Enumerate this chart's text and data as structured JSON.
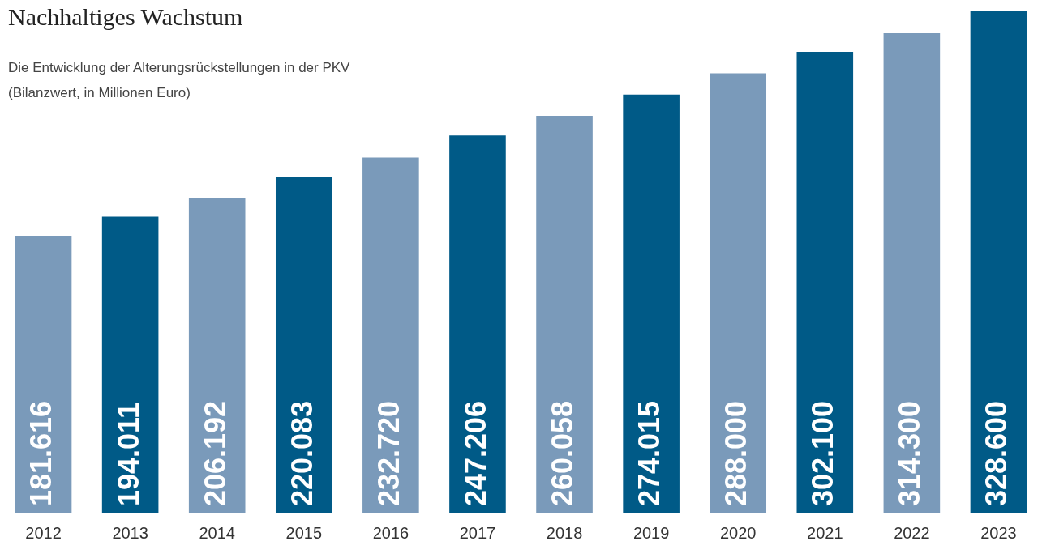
{
  "chart_data": {
    "type": "bar",
    "title": "Nachhaltiges Wachstum",
    "subtitle": "Die Entwicklung der Alterungsrückstellungen in der PKV (Bilanzwert, in Millionen Euro)",
    "categories": [
      "2012",
      "2013",
      "2014",
      "2015",
      "2016",
      "2017",
      "2018",
      "2019",
      "2020",
      "2021",
      "2022",
      "2023"
    ],
    "values": [
      181616,
      194011,
      206192,
      220083,
      232720,
      247206,
      260058,
      274015,
      288000,
      302100,
      314300,
      328600
    ],
    "value_labels": [
      "181.616",
      "194.011",
      "206.192",
      "220.083",
      "232.720",
      "247.206",
      "260.058",
      "274.015",
      "288.000",
      "302.100",
      "314.300",
      "328.600"
    ],
    "colors": [
      "#7a9aba",
      "#005a87",
      "#7a9aba",
      "#005a87",
      "#7a9aba",
      "#005a87",
      "#7a9aba",
      "#005a87",
      "#7a9aba",
      "#005a87",
      "#7a9aba",
      "#005a87"
    ],
    "tick_labels": "x",
    "grid": false,
    "legend": false
  }
}
